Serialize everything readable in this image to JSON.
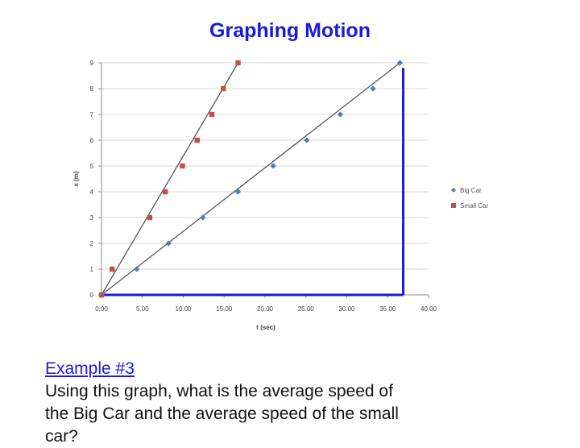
{
  "title": "Graphing Motion",
  "example": {
    "heading": "Example #3",
    "question": "Using this graph, what is the average speed of\nthe Big Car and the average speed of the small\ncar?"
  },
  "colors": {
    "title": "#1a1adb",
    "big_car": "#4a7ebb",
    "small_car": "#c0504d",
    "annotation": "#1a1adb",
    "gridline": "#d9d9d9",
    "trendline": "#555555"
  },
  "chart_data": {
    "type": "scatter",
    "xlabel": "t (sec)",
    "ylabel": "x (m)",
    "xlim": [
      0,
      40
    ],
    "ylim": [
      0,
      9
    ],
    "x_ticks": [
      "0.00",
      "5.00",
      "10.00",
      "15.00",
      "20.00",
      "25.00",
      "30.00",
      "35.00",
      "40.00"
    ],
    "y_ticks": [
      "0",
      "1",
      "2",
      "3",
      "4",
      "5",
      "6",
      "7",
      "8",
      "9"
    ],
    "grid": "horizontal",
    "legend_position": "right",
    "series": [
      {
        "name": "Big Car",
        "marker": "diamond",
        "color": "#4a7ebb",
        "x": [
          0,
          4.3,
          8.2,
          12.4,
          16.7,
          21.0,
          25.1,
          29.2,
          33.2,
          36.5
        ],
        "y": [
          0,
          1,
          2,
          3,
          4,
          5,
          6,
          7,
          8,
          9
        ]
      },
      {
        "name": "Small Car",
        "marker": "square",
        "color": "#c0504d",
        "x": [
          0,
          1.3,
          5.9,
          7.8,
          9.9,
          11.7,
          13.5,
          14.9,
          16.7
        ],
        "y": [
          0,
          1,
          3,
          4,
          5,
          6,
          7,
          8,
          9
        ]
      }
    ],
    "trendlines": [
      {
        "series": "Big Car",
        "from": [
          0,
          0
        ],
        "to": [
          36.5,
          9
        ]
      },
      {
        "series": "Small Car",
        "from": [
          0,
          0
        ],
        "to": [
          16.7,
          9
        ]
      }
    ],
    "annotations": [
      {
        "type": "vertical",
        "x": 36.9,
        "y_from": 0,
        "y_to": 8.8,
        "color": "#1a1adb"
      },
      {
        "type": "horizontal",
        "y": 0,
        "x_from": 0,
        "x_to": 36.9,
        "color": "#1a1adb"
      }
    ]
  }
}
